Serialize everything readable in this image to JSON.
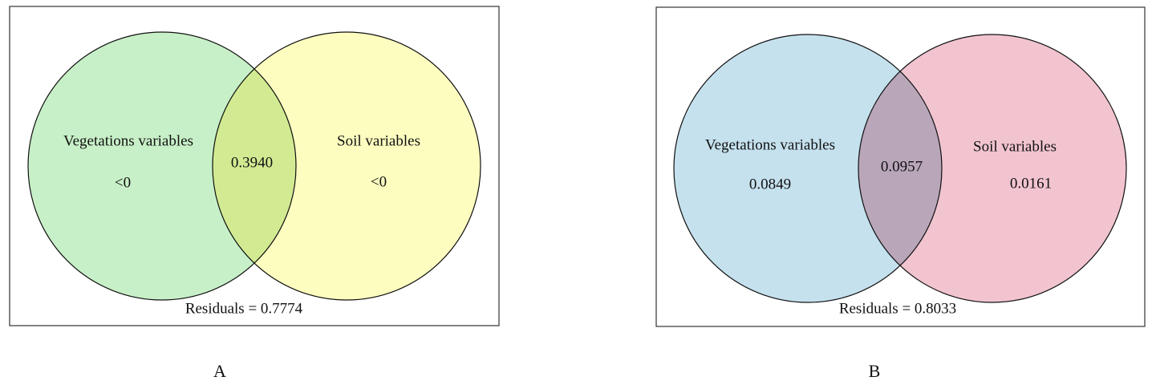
{
  "panels": [
    {
      "label": "A",
      "left": {
        "name": "Vegetations variables",
        "value": "<0"
      },
      "right": {
        "name": "Soil variables",
        "value": "<0"
      },
      "overlap": "0.3940",
      "residuals": "Residuals = 0.7774"
    },
    {
      "label": "B",
      "left": {
        "name": "Vegetations variables",
        "value": "0.0849"
      },
      "right": {
        "name": "Soil variables",
        "value": "0.0161"
      },
      "overlap": "0.0957",
      "residuals": "Residuals = 0.8033"
    }
  ]
}
